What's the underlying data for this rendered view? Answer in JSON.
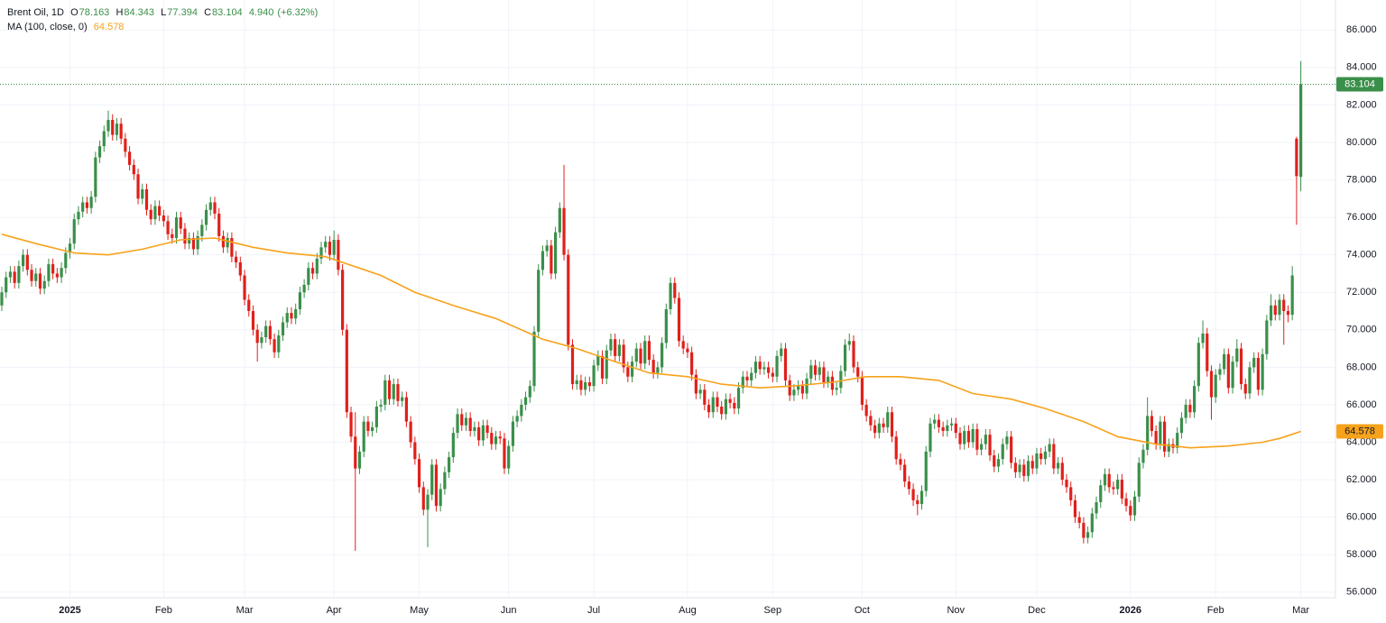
{
  "chart_data": {
    "type": "candlestick",
    "title": "Brent Oil, 1D",
    "ohlc_prefixes": [
      "O",
      "H",
      "L",
      "C"
    ],
    "change": {
      "value": 4.94,
      "label": "4.940"
    },
    "change_pct": {
      "value": 6.32,
      "label": "(+6.32%)"
    },
    "up_color": "#3a8f4a",
    "down_color": "#e0201b",
    "ylim": [
      55.7,
      87.6
    ],
    "yticks": [
      {
        "value": 56,
        "label": "56.000"
      },
      {
        "value": 58,
        "label": "58.000"
      },
      {
        "value": 60,
        "label": "60.000"
      },
      {
        "value": 62,
        "label": "62.000"
      },
      {
        "value": 64,
        "label": "64.000"
      },
      {
        "value": 66,
        "label": "66.000"
      },
      {
        "value": 68,
        "label": "68.000"
      },
      {
        "value": 70,
        "label": "70.000"
      },
      {
        "value": 72,
        "label": "72.000"
      },
      {
        "value": 74,
        "label": "74.000"
      },
      {
        "value": 76,
        "label": "76.000"
      },
      {
        "value": 78,
        "label": "78.000"
      },
      {
        "value": 80,
        "label": "80.000"
      },
      {
        "value": 82,
        "label": "82.000"
      },
      {
        "value": 84,
        "label": "84.000"
      },
      {
        "value": 86,
        "label": "86.000"
      }
    ],
    "xticks": [
      {
        "value": 16,
        "label": "2025"
      },
      {
        "value": 38,
        "label": "Feb"
      },
      {
        "value": 57,
        "label": "Mar"
      },
      {
        "value": 78,
        "label": "Apr"
      },
      {
        "value": 98,
        "label": "May"
      },
      {
        "value": 119,
        "label": "Jun"
      },
      {
        "value": 139,
        "label": "Jul"
      },
      {
        "value": 161,
        "label": "Aug"
      },
      {
        "value": 181,
        "label": "Sep"
      },
      {
        "value": 202,
        "label": "Oct"
      },
      {
        "value": 224,
        "label": "Nov"
      },
      {
        "value": 243,
        "label": "Dec"
      },
      {
        "value": 265,
        "label": "2026"
      },
      {
        "value": 285,
        "label": "Feb"
      },
      {
        "value": 305,
        "label": "Mar"
      }
    ],
    "open": [
      71.3,
      72.0,
      72.8,
      73.1,
      72.5,
      73.4,
      74.0,
      73.2,
      72.6,
      73.0,
      72.2,
      72.6,
      73.5,
      73.0,
      72.8,
      73.3,
      74.1,
      74.6,
      75.9,
      76.3,
      76.8,
      76.5,
      77.1,
      79.2,
      79.8,
      80.6,
      81.2,
      80.4,
      81.0,
      80.2,
      79.5,
      78.8,
      78.3,
      77.0,
      77.5,
      76.4,
      75.9,
      76.6,
      76.1,
      75.8,
      75.1,
      74.9,
      76.0,
      75.4,
      74.6,
      74.9,
      74.3,
      75.0,
      75.6,
      76.4,
      76.8,
      76.2,
      75.0,
      74.4,
      74.9,
      73.9,
      73.6,
      72.9,
      71.6,
      71.0,
      70.0,
      69.3,
      69.6,
      70.2,
      69.5,
      68.8,
      69.7,
      70.4,
      70.9,
      70.6,
      71.1,
      72.0,
      72.4,
      73.3,
      73.0,
      73.8,
      74.4,
      74.7,
      74.0,
      74.8,
      73.2,
      70.0,
      65.6,
      64.3,
      62.6,
      63.5,
      65.1,
      64.6,
      64.8,
      65.9,
      66.0,
      67.3,
      66.3,
      67.1,
      66.2,
      66.4,
      65.1,
      64.0,
      63.1,
      61.6,
      60.4,
      61.2,
      62.8,
      60.6,
      61.5,
      62.4,
      63.2,
      64.5,
      65.5,
      64.9,
      65.3,
      64.6,
      64.8,
      64.1,
      64.9,
      64.5,
      63.9,
      64.3,
      64.2,
      62.6,
      63.8,
      65.1,
      65.4,
      66.0,
      66.4,
      67.0,
      69.9,
      73.2,
      74.2,
      74.5,
      73.0,
      75.2,
      76.5,
      74.0,
      69.2,
      67.1,
      67.3,
      66.8,
      67.2,
      67.0,
      68.1,
      68.6,
      67.4,
      68.9,
      69.5,
      68.6,
      69.2,
      68.0,
      67.5,
      68.3,
      69.0,
      68.2,
      69.4,
      68.4,
      67.7,
      68.0,
      69.3,
      71.1,
      72.5,
      71.7,
      69.4,
      69.0,
      68.8,
      67.6,
      66.6,
      66.8,
      66.0,
      65.6,
      66.4,
      65.9,
      65.5,
      66.3,
      66.1,
      65.8,
      66.9,
      67.5,
      67.3,
      67.7,
      68.3,
      67.9,
      68.0,
      67.7,
      67.5,
      68.6,
      69.0,
      67.3,
      66.5,
      66.8,
      67.0,
      66.6,
      67.4,
      68.1,
      67.6,
      68.0,
      67.2,
      67.5,
      66.8,
      66.9,
      67.8,
      69.2,
      69.4,
      68.0,
      67.5,
      66.0,
      65.4,
      64.9,
      64.5,
      65.0,
      64.8,
      65.6,
      64.3,
      63.1,
      62.8,
      61.9,
      61.5,
      60.9,
      60.7,
      61.4,
      63.5,
      65.0,
      65.2,
      64.8,
      64.6,
      64.9,
      65.0,
      64.5,
      63.9,
      64.6,
      64.0,
      64.7,
      63.6,
      63.9,
      64.4,
      63.3,
      62.7,
      63.1,
      63.9,
      64.3,
      62.9,
      62.4,
      62.8,
      62.2,
      63.0,
      62.6,
      63.4,
      63.1,
      63.5,
      63.9,
      62.6,
      62.9,
      62.0,
      61.6,
      60.9,
      60.0,
      59.7,
      58.9,
      59.2,
      60.2,
      60.8,
      61.7,
      62.3,
      61.6,
      61.5,
      62.0,
      61.0,
      60.6,
      60.1,
      61.1,
      62.9,
      63.6,
      65.4,
      64.6,
      63.9,
      65.1,
      63.5,
      63.9,
      63.7,
      64.5,
      65.3,
      66.0,
      65.6,
      67.0,
      69.3,
      69.8,
      67.8,
      66.4,
      67.6,
      67.9,
      68.7,
      66.9,
      68.3,
      69.0,
      67.1,
      66.6,
      68.0,
      68.5,
      66.8,
      68.7,
      70.5,
      71.3,
      70.8,
      71.6,
      71.0,
      70.8,
      80.2,
      78.163
    ],
    "high": [
      72.3,
      73.1,
      73.4,
      73.4,
      73.7,
      74.3,
      74.3,
      73.5,
      73.3,
      73.3,
      72.9,
      73.8,
      73.8,
      73.3,
      73.6,
      74.4,
      74.9,
      76.2,
      76.6,
      77.1,
      77.1,
      77.4,
      79.5,
      80.1,
      80.9,
      81.7,
      81.5,
      81.3,
      81.3,
      80.5,
      79.8,
      79.1,
      78.6,
      77.8,
      77.8,
      76.7,
      76.9,
      76.9,
      76.4,
      76.1,
      75.4,
      76.3,
      76.3,
      75.7,
      75.2,
      75.2,
      75.3,
      75.9,
      76.7,
      77.1,
      77.1,
      76.5,
      75.3,
      75.2,
      75.2,
      74.2,
      73.9,
      73.2,
      71.9,
      71.3,
      70.3,
      69.9,
      70.5,
      70.5,
      69.8,
      70.0,
      70.7,
      71.2,
      71.2,
      71.4,
      72.3,
      72.7,
      73.6,
      73.6,
      74.1,
      74.7,
      75.0,
      75.0,
      75.3,
      75.1,
      73.5,
      70.3,
      65.9,
      65.6,
      63.8,
      65.4,
      65.4,
      65.1,
      66.2,
      66.3,
      67.6,
      67.6,
      67.4,
      67.4,
      66.7,
      66.7,
      65.4,
      64.3,
      63.4,
      61.9,
      61.5,
      63.1,
      63.1,
      61.8,
      62.7,
      63.5,
      64.8,
      65.8,
      65.8,
      65.6,
      65.6,
      65.1,
      65.1,
      65.2,
      65.2,
      64.8,
      64.6,
      64.6,
      64.5,
      64.1,
      65.4,
      65.7,
      66.3,
      66.7,
      67.3,
      70.2,
      73.5,
      74.5,
      74.8,
      74.8,
      75.5,
      76.8,
      78.8,
      74.3,
      69.5,
      67.6,
      67.6,
      67.5,
      67.5,
      68.4,
      68.9,
      68.9,
      69.2,
      69.8,
      69.8,
      69.5,
      69.5,
      68.3,
      68.6,
      69.3,
      69.3,
      69.7,
      69.7,
      68.7,
      68.3,
      69.6,
      71.4,
      72.8,
      72.8,
      72.0,
      69.7,
      69.3,
      69.1,
      67.9,
      67.1,
      67.1,
      66.3,
      66.7,
      66.7,
      66.2,
      66.6,
      66.6,
      66.4,
      67.2,
      67.8,
      67.8,
      68.0,
      68.6,
      68.6,
      68.3,
      68.3,
      68.0,
      68.9,
      69.3,
      69.3,
      67.6,
      67.1,
      67.3,
      67.3,
      67.7,
      68.4,
      68.4,
      68.3,
      68.3,
      67.8,
      67.8,
      67.2,
      68.1,
      69.5,
      69.8,
      69.7,
      68.3,
      67.8,
      66.3,
      65.7,
      65.2,
      65.3,
      65.3,
      65.9,
      65.9,
      64.6,
      63.4,
      63.1,
      62.2,
      61.8,
      61.2,
      61.7,
      63.8,
      65.3,
      65.5,
      65.5,
      65.1,
      65.2,
      65.3,
      65.3,
      64.8,
      64.9,
      64.9,
      65.0,
      65.0,
      64.2,
      64.7,
      64.7,
      63.6,
      63.4,
      64.2,
      64.6,
      64.6,
      63.2,
      63.1,
      63.1,
      63.3,
      63.3,
      63.7,
      63.7,
      63.8,
      64.2,
      64.2,
      63.2,
      63.2,
      62.3,
      61.9,
      61.2,
      60.3,
      60.0,
      59.5,
      60.5,
      61.1,
      62.0,
      62.6,
      62.6,
      61.9,
      62.3,
      62.3,
      61.3,
      60.9,
      61.4,
      63.2,
      63.9,
      66.4,
      65.7,
      64.9,
      65.4,
      65.4,
      64.2,
      64.2,
      64.8,
      65.6,
      66.3,
      66.3,
      67.3,
      69.6,
      70.5,
      70.1,
      68.1,
      67.9,
      68.2,
      69.0,
      69.0,
      68.6,
      69.5,
      69.3,
      67.4,
      68.3,
      68.8,
      68.8,
      69.0,
      70.8,
      71.9,
      71.6,
      71.9,
      71.9,
      71.3,
      73.4,
      80.3,
      84.343
    ],
    "low": [
      71.0,
      71.7,
      72.5,
      72.2,
      72.2,
      73.1,
      72.9,
      72.3,
      72.3,
      71.9,
      71.9,
      72.3,
      72.7,
      72.5,
      72.5,
      73.0,
      73.8,
      74.3,
      75.6,
      76.0,
      76.2,
      76.2,
      76.8,
      78.9,
      79.5,
      80.3,
      80.1,
      80.1,
      79.9,
      79.2,
      78.5,
      78.0,
      76.7,
      76.7,
      76.1,
      75.6,
      75.6,
      75.8,
      75.5,
      74.8,
      74.6,
      74.6,
      75.1,
      74.3,
      74.3,
      74.0,
      74.0,
      74.7,
      75.3,
      76.1,
      75.9,
      74.7,
      74.1,
      74.1,
      73.6,
      73.3,
      72.6,
      71.3,
      70.7,
      69.7,
      68.3,
      69.0,
      69.3,
      69.2,
      68.5,
      68.5,
      69.4,
      70.1,
      70.3,
      70.3,
      70.8,
      71.7,
      72.1,
      72.7,
      72.7,
      73.5,
      74.1,
      73.7,
      73.7,
      72.9,
      69.7,
      65.3,
      64.0,
      58.2,
      62.3,
      63.2,
      64.3,
      64.3,
      64.5,
      65.6,
      65.7,
      66.0,
      66.0,
      65.9,
      65.9,
      64.8,
      63.7,
      62.8,
      61.3,
      60.1,
      58.4,
      60.9,
      60.3,
      60.3,
      61.2,
      62.1,
      62.9,
      64.2,
      64.6,
      64.6,
      64.3,
      64.3,
      63.8,
      63.8,
      64.2,
      63.6,
      63.6,
      63.9,
      62.3,
      62.3,
      63.5,
      64.8,
      65.1,
      65.7,
      66.1,
      66.7,
      69.6,
      72.9,
      73.9,
      72.7,
      72.7,
      74.9,
      73.7,
      68.9,
      66.8,
      66.8,
      66.5,
      66.5,
      66.7,
      66.7,
      67.8,
      67.1,
      67.1,
      68.6,
      68.3,
      68.3,
      67.7,
      67.2,
      67.2,
      68.0,
      67.9,
      67.9,
      68.1,
      67.4,
      67.4,
      67.7,
      69.0,
      70.8,
      71.4,
      69.1,
      68.7,
      68.5,
      67.3,
      66.3,
      66.3,
      65.7,
      65.3,
      65.3,
      65.6,
      65.2,
      65.2,
      65.8,
      65.5,
      65.5,
      66.6,
      67.0,
      67.0,
      67.4,
      67.6,
      67.6,
      67.4,
      67.2,
      67.2,
      68.3,
      67.0,
      66.2,
      66.2,
      66.5,
      66.3,
      66.3,
      67.1,
      67.3,
      67.3,
      66.9,
      66.9,
      66.5,
      66.5,
      66.6,
      67.5,
      68.9,
      67.7,
      67.2,
      65.7,
      65.1,
      64.6,
      64.2,
      64.2,
      64.5,
      64.5,
      64.0,
      62.8,
      62.5,
      61.6,
      61.2,
      60.6,
      60.1,
      60.4,
      61.1,
      63.2,
      64.7,
      64.5,
      64.3,
      64.3,
      64.6,
      64.2,
      63.6,
      63.6,
      63.7,
      63.7,
      63.3,
      63.3,
      63.6,
      63.0,
      62.4,
      62.4,
      62.8,
      63.6,
      62.6,
      62.1,
      62.1,
      61.9,
      61.9,
      62.3,
      62.3,
      62.8,
      62.8,
      63.2,
      62.3,
      62.3,
      61.7,
      61.3,
      60.6,
      59.7,
      59.4,
      58.6,
      58.6,
      58.9,
      59.9,
      60.5,
      61.4,
      61.3,
      61.2,
      61.2,
      60.7,
      60.3,
      59.8,
      59.8,
      60.8,
      62.6,
      63.3,
      64.3,
      63.6,
      63.6,
      63.2,
      63.2,
      63.4,
      63.4,
      64.2,
      65.0,
      65.3,
      65.3,
      66.7,
      69.0,
      67.5,
      65.2,
      66.1,
      67.3,
      67.6,
      66.6,
      66.6,
      68.0,
      66.8,
      66.3,
      66.3,
      67.7,
      66.5,
      66.5,
      68.4,
      70.2,
      70.5,
      70.5,
      69.2,
      70.4,
      70.5,
      75.6,
      77.394
    ],
    "close": [
      72.0,
      72.8,
      73.1,
      72.5,
      73.4,
      74.0,
      73.2,
      72.6,
      73.0,
      72.2,
      72.6,
      73.5,
      73.0,
      72.8,
      73.3,
      74.1,
      74.6,
      75.9,
      76.3,
      76.8,
      76.5,
      77.1,
      79.2,
      79.8,
      80.6,
      81.2,
      80.4,
      81.0,
      80.2,
      79.5,
      78.8,
      78.3,
      77.0,
      77.5,
      76.4,
      75.9,
      76.6,
      76.1,
      75.8,
      75.1,
      74.9,
      76.0,
      75.4,
      74.6,
      74.9,
      74.3,
      75.0,
      75.6,
      76.4,
      76.8,
      76.2,
      75.0,
      74.4,
      74.9,
      73.9,
      73.6,
      72.9,
      71.6,
      71.0,
      70.0,
      69.3,
      69.6,
      70.2,
      69.5,
      68.8,
      69.7,
      70.4,
      70.9,
      70.6,
      71.1,
      72.0,
      72.4,
      73.3,
      73.0,
      73.8,
      74.4,
      74.7,
      74.0,
      74.8,
      73.2,
      70.0,
      65.6,
      64.3,
      62.6,
      63.5,
      65.1,
      64.6,
      64.8,
      65.9,
      66.0,
      67.3,
      66.3,
      67.1,
      66.2,
      66.4,
      65.1,
      64.0,
      63.1,
      61.6,
      60.4,
      61.2,
      62.8,
      60.6,
      61.5,
      62.4,
      63.2,
      64.5,
      65.5,
      64.9,
      65.3,
      64.6,
      64.8,
      64.1,
      64.9,
      64.5,
      63.9,
      64.3,
      64.2,
      62.6,
      63.8,
      65.1,
      65.4,
      66.0,
      66.4,
      67.0,
      69.9,
      73.2,
      74.2,
      74.5,
      73.0,
      75.2,
      76.5,
      74.0,
      69.2,
      67.1,
      67.3,
      66.8,
      67.2,
      67.0,
      68.1,
      68.6,
      67.4,
      68.9,
      69.5,
      68.6,
      69.2,
      68.0,
      67.5,
      68.3,
      69.0,
      68.2,
      69.4,
      68.4,
      67.7,
      68.0,
      69.3,
      71.1,
      72.5,
      71.7,
      69.4,
      69.0,
      68.8,
      67.6,
      66.6,
      66.8,
      66.0,
      65.6,
      66.4,
      65.9,
      65.5,
      66.3,
      66.1,
      65.8,
      66.9,
      67.5,
      67.3,
      67.7,
      68.3,
      67.9,
      68.0,
      67.7,
      67.5,
      68.6,
      69.0,
      67.3,
      66.5,
      66.8,
      67.0,
      66.6,
      67.4,
      68.1,
      67.6,
      68.0,
      67.2,
      67.5,
      66.8,
      66.9,
      67.8,
      69.2,
      69.4,
      68.0,
      67.5,
      66.0,
      65.4,
      64.9,
      64.5,
      65.0,
      64.8,
      65.6,
      64.3,
      63.1,
      62.8,
      61.9,
      61.5,
      60.9,
      60.7,
      61.4,
      63.5,
      65.0,
      65.2,
      64.8,
      64.6,
      64.9,
      65.0,
      64.5,
      63.9,
      64.6,
      64.0,
      64.7,
      63.6,
      63.9,
      64.4,
      63.3,
      62.7,
      63.1,
      63.9,
      64.3,
      62.9,
      62.4,
      62.8,
      62.2,
      63.0,
      62.6,
      63.4,
      63.1,
      63.5,
      63.9,
      62.6,
      62.9,
      62.0,
      61.6,
      60.9,
      60.0,
      59.7,
      58.9,
      59.2,
      60.2,
      60.8,
      61.7,
      62.3,
      61.6,
      61.5,
      62.0,
      61.0,
      60.6,
      60.1,
      61.1,
      62.9,
      63.6,
      65.4,
      64.6,
      63.9,
      65.1,
      63.5,
      63.9,
      63.7,
      64.5,
      65.3,
      66.0,
      65.6,
      67.0,
      69.3,
      69.8,
      67.8,
      66.4,
      67.6,
      67.9,
      68.7,
      66.9,
      68.3,
      69.0,
      67.1,
      66.6,
      68.0,
      68.5,
      66.8,
      68.7,
      70.5,
      71.3,
      70.8,
      71.6,
      71.0,
      70.8,
      72.9,
      78.2,
      83.104
    ],
    "ma": {
      "name": "MA (100, close, 0)",
      "color": "#f7a21b",
      "x": [
        0,
        8,
        17,
        25,
        33,
        42,
        50,
        59,
        67,
        76,
        80,
        89,
        97,
        106,
        116,
        127,
        135,
        144,
        152,
        161,
        169,
        178,
        186,
        195,
        203,
        211,
        220,
        228,
        237,
        245,
        254,
        262,
        271,
        279,
        288,
        296,
        300,
        305
      ],
      "values": [
        75.1,
        74.6,
        74.1,
        74.0,
        74.3,
        74.8,
        74.9,
        74.4,
        74.1,
        73.9,
        73.6,
        72.9,
        72.0,
        71.3,
        70.6,
        69.5,
        69.0,
        68.3,
        67.7,
        67.5,
        67.1,
        66.9,
        67.0,
        67.2,
        67.5,
        67.5,
        67.3,
        66.6,
        66.3,
        65.8,
        65.1,
        64.3,
        63.9,
        63.7,
        63.8,
        64.0,
        64.2,
        64.578
      ]
    }
  }
}
